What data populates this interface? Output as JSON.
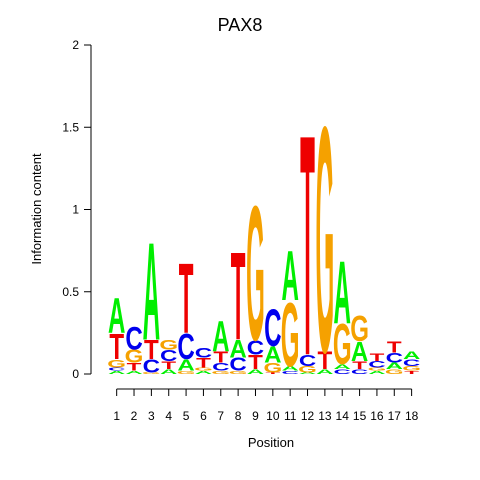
{
  "chart_data": {
    "type": "sequence-logo",
    "title": "PAX8",
    "xlabel": "Position",
    "ylabel": "Information content",
    "ylim": [
      0,
      2
    ],
    "yticks": [
      "0",
      "0.5",
      "1",
      "1.5",
      "2"
    ],
    "positions": [
      "1",
      "2",
      "3",
      "4",
      "5",
      "6",
      "7",
      "8",
      "9",
      "10",
      "11",
      "12",
      "13",
      "14",
      "15",
      "16",
      "17",
      "18"
    ],
    "colors": {
      "A": "#00ee00",
      "C": "#0000ee",
      "G": "#f5a100",
      "T": "#ee0000"
    },
    "stacks": [
      [
        {
          "l": "A",
          "h": 0.02
        },
        {
          "l": "C",
          "h": 0.02
        },
        {
          "l": "G",
          "h": 0.05
        },
        {
          "l": "T",
          "h": 0.16
        },
        {
          "l": "A",
          "h": 0.22
        }
      ],
      [
        {
          "l": "A",
          "h": 0.02
        },
        {
          "l": "T",
          "h": 0.05
        },
        {
          "l": "G",
          "h": 0.08
        },
        {
          "l": "C",
          "h": 0.14
        }
      ],
      [
        {
          "l": "G",
          "h": 0.01
        },
        {
          "l": "C",
          "h": 0.08
        },
        {
          "l": "T",
          "h": 0.12
        },
        {
          "l": "A",
          "h": 0.61
        }
      ],
      [
        {
          "l": "A",
          "h": 0.03
        },
        {
          "l": "T",
          "h": 0.05
        },
        {
          "l": "C",
          "h": 0.07
        },
        {
          "l": "G",
          "h": 0.06
        }
      ],
      [
        {
          "l": "G",
          "h": 0.02
        },
        {
          "l": "A",
          "h": 0.07
        },
        {
          "l": "C",
          "h": 0.16
        },
        {
          "l": "T",
          "h": 0.44
        }
      ],
      [
        {
          "l": "A",
          "h": 0.02
        },
        {
          "l": "G",
          "h": 0.02
        },
        {
          "l": "T",
          "h": 0.06
        },
        {
          "l": "C",
          "h": 0.06
        }
      ],
      [
        {
          "l": "G",
          "h": 0.02
        },
        {
          "l": "C",
          "h": 0.05
        },
        {
          "l": "T",
          "h": 0.07
        },
        {
          "l": "A",
          "h": 0.19
        }
      ],
      [
        {
          "l": "G",
          "h": 0.02
        },
        {
          "l": "C",
          "h": 0.08
        },
        {
          "l": "A",
          "h": 0.11
        },
        {
          "l": "T",
          "h": 0.55
        }
      ],
      [
        {
          "l": "A",
          "h": 0.03
        },
        {
          "l": "T",
          "h": 0.09
        },
        {
          "l": "C",
          "h": 0.09
        },
        {
          "l": "G",
          "h": 0.84
        }
      ],
      [
        {
          "l": "T",
          "h": 0.01
        },
        {
          "l": "G",
          "h": 0.06
        },
        {
          "l": "A",
          "h": 0.1
        },
        {
          "l": "C",
          "h": 0.23
        }
      ],
      [
        {
          "l": "C",
          "h": 0.02
        },
        {
          "l": "A",
          "h": 0.03
        },
        {
          "l": "G",
          "h": 0.4
        },
        {
          "l": "A",
          "h": 0.31
        }
      ],
      [
        {
          "l": "A",
          "h": 0.01
        },
        {
          "l": "G",
          "h": 0.04
        },
        {
          "l": "C",
          "h": 0.07
        },
        {
          "l": "T",
          "h": 1.38
        }
      ],
      [
        {
          "l": "A",
          "h": 0.03
        },
        {
          "l": "T",
          "h": 0.11
        },
        {
          "l": "G",
          "h": 1.41
        }
      ],
      [
        {
          "l": "C",
          "h": 0.03
        },
        {
          "l": "A",
          "h": 0.03
        },
        {
          "l": "G",
          "h": 0.25
        },
        {
          "l": "A",
          "h": 0.39
        }
      ],
      [
        {
          "l": "C",
          "h": 0.03
        },
        {
          "l": "T",
          "h": 0.05
        },
        {
          "l": "A",
          "h": 0.12
        },
        {
          "l": "G",
          "h": 0.16
        }
      ],
      [
        {
          "l": "A",
          "h": 0.02
        },
        {
          "l": "G",
          "h": 0.02
        },
        {
          "l": "C",
          "h": 0.04
        },
        {
          "l": "T",
          "h": 0.05
        }
      ],
      [
        {
          "l": "G",
          "h": 0.03
        },
        {
          "l": "A",
          "h": 0.04
        },
        {
          "l": "C",
          "h": 0.06
        },
        {
          "l": "T",
          "h": 0.07
        }
      ],
      [
        {
          "l": "T",
          "h": 0.02
        },
        {
          "l": "G",
          "h": 0.03
        },
        {
          "l": "C",
          "h": 0.04
        },
        {
          "l": "A",
          "h": 0.05
        }
      ]
    ]
  }
}
